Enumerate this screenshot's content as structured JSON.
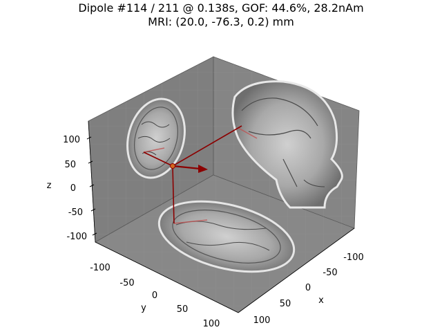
{
  "figure": {
    "title_line1": "Dipole #114 / 211 @ 0.138s, GOF: 44.6%, 28.2nAm",
    "title_line2": "MRI: (20.0, -76.3, 0.2) mm"
  },
  "axes3d": {
    "x_label": "x",
    "y_label": "y",
    "z_label": "z",
    "x_ticks": [
      "-100",
      "-50",
      "0",
      "50",
      "100"
    ],
    "y_ticks": [
      "-100",
      "-50",
      "0",
      "50",
      "100"
    ],
    "z_ticks": [
      "100",
      "50",
      "0",
      "-50",
      "-100"
    ],
    "pane_color": "#808080",
    "dipole_color": "#8b0000"
  },
  "chart_data": {
    "type": "scatter",
    "dipole": {
      "index": 114,
      "total": 211,
      "time_s": 0.138,
      "gof_percent": 44.6,
      "amplitude_nAm": 28.2,
      "position_mm": [
        20.0,
        -76.3,
        0.2
      ]
    },
    "xlabel": "x",
    "ylabel": "y",
    "zlabel": "z",
    "xlim": [
      -125,
      125
    ],
    "ylim": [
      -125,
      125
    ],
    "zlim": [
      -125,
      125
    ]
  }
}
